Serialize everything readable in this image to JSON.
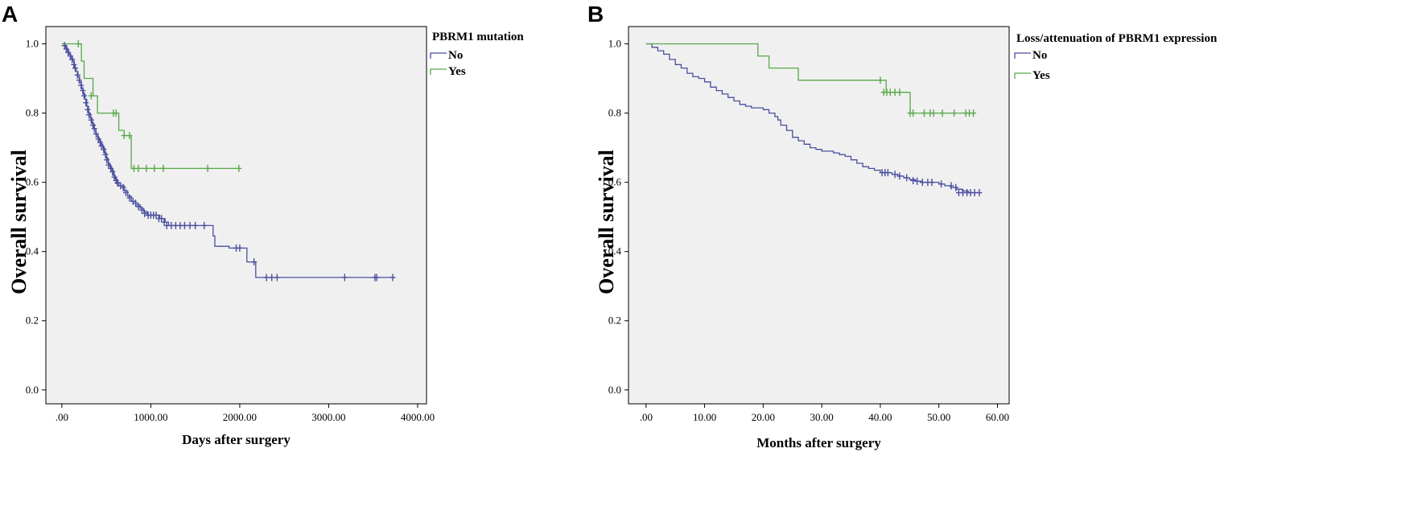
{
  "colors": {
    "no": "#4a4f9e",
    "yes": "#58a84a",
    "plot_bg": "#f0f0f0",
    "frame": "#000000"
  },
  "chart_data": [
    {
      "panel_label": "A",
      "type": "line",
      "title": "",
      "xlabel": "Days after surgery",
      "ylabel": "Overall survival",
      "xlim": [
        -180,
        4100
      ],
      "ylim": [
        -0.04,
        1.05
      ],
      "x_ticks": [
        0,
        1000,
        2000,
        3000,
        4000
      ],
      "x_tick_labels": [
        ".00",
        "1000.00",
        "2000.00",
        "3000.00",
        "4000.00"
      ],
      "y_ticks": [
        0,
        0.2,
        0.4,
        0.6,
        0.8,
        1.0
      ],
      "y_tick_labels": [
        "0.0",
        "0.2",
        "0.4",
        "0.6",
        "0.8",
        "1.0"
      ],
      "legend_title": "PBRM1 mutation",
      "legend_placement": "right",
      "series": [
        {
          "name": "No",
          "key": "no",
          "steps": [
            [
              0,
              1.0
            ],
            [
              40,
              0.99
            ],
            [
              60,
              0.98
            ],
            [
              80,
              0.97
            ],
            [
              100,
              0.96
            ],
            [
              120,
              0.95
            ],
            [
              140,
              0.93
            ],
            [
              160,
              0.92
            ],
            [
              180,
              0.905
            ],
            [
              200,
              0.89
            ],
            [
              220,
              0.87
            ],
            [
              240,
              0.855
            ],
            [
              260,
              0.84
            ],
            [
              280,
              0.82
            ],
            [
              300,
              0.8
            ],
            [
              320,
              0.785
            ],
            [
              340,
              0.77
            ],
            [
              360,
              0.755
            ],
            [
              380,
              0.74
            ],
            [
              400,
              0.73
            ],
            [
              420,
              0.72
            ],
            [
              440,
              0.71
            ],
            [
              460,
              0.7
            ],
            [
              480,
              0.685
            ],
            [
              500,
              0.67
            ],
            [
              520,
              0.655
            ],
            [
              540,
              0.645
            ],
            [
              560,
              0.635
            ],
            [
              580,
              0.62
            ],
            [
              600,
              0.61
            ],
            [
              620,
              0.6
            ],
            [
              640,
              0.59
            ],
            [
              700,
              0.575
            ],
            [
              740,
              0.56
            ],
            [
              780,
              0.545
            ],
            [
              830,
              0.535
            ],
            [
              880,
              0.525
            ],
            [
              920,
              0.515
            ],
            [
              960,
              0.505
            ],
            [
              1100,
              0.495
            ],
            [
              1160,
              0.485
            ],
            [
              1200,
              0.475
            ],
            [
              1700,
              0.445
            ],
            [
              1720,
              0.415
            ],
            [
              1880,
              0.41
            ],
            [
              2080,
              0.37
            ],
            [
              2180,
              0.325
            ],
            [
              3740,
              0.325
            ]
          ],
          "censored": [
            [
              30,
              0.995
            ],
            [
              50,
              0.985
            ],
            [
              70,
              0.975
            ],
            [
              95,
              0.965
            ],
            [
              115,
              0.955
            ],
            [
              135,
              0.94
            ],
            [
              150,
              0.93
            ],
            [
              175,
              0.91
            ],
            [
              195,
              0.895
            ],
            [
              215,
              0.88
            ],
            [
              235,
              0.865
            ],
            [
              250,
              0.85
            ],
            [
              270,
              0.83
            ],
            [
              290,
              0.81
            ],
            [
              305,
              0.795
            ],
            [
              330,
              0.78
            ],
            [
              350,
              0.765
            ],
            [
              365,
              0.755
            ],
            [
              385,
              0.74
            ],
            [
              410,
              0.725
            ],
            [
              430,
              0.715
            ],
            [
              445,
              0.705
            ],
            [
              470,
              0.695
            ],
            [
              490,
              0.68
            ],
            [
              505,
              0.665
            ],
            [
              525,
              0.65
            ],
            [
              550,
              0.64
            ],
            [
              570,
              0.63
            ],
            [
              590,
              0.615
            ],
            [
              610,
              0.605
            ],
            [
              625,
              0.598
            ],
            [
              660,
              0.59
            ],
            [
              690,
              0.585
            ],
            [
              720,
              0.57
            ],
            [
              760,
              0.555
            ],
            [
              800,
              0.545
            ],
            [
              830,
              0.54
            ],
            [
              860,
              0.53
            ],
            [
              900,
              0.52
            ],
            [
              930,
              0.51
            ],
            [
              970,
              0.505
            ],
            [
              1000,
              0.505
            ],
            [
              1030,
              0.505
            ],
            [
              1060,
              0.505
            ],
            [
              1090,
              0.495
            ],
            [
              1120,
              0.495
            ],
            [
              1150,
              0.485
            ],
            [
              1180,
              0.475
            ],
            [
              1230,
              0.475
            ],
            [
              1280,
              0.475
            ],
            [
              1330,
              0.475
            ],
            [
              1380,
              0.475
            ],
            [
              1440,
              0.475
            ],
            [
              1500,
              0.475
            ],
            [
              1600,
              0.475
            ],
            [
              1960,
              0.41
            ],
            [
              2000,
              0.41
            ],
            [
              2160,
              0.37
            ],
            [
              2300,
              0.325
            ],
            [
              2360,
              0.325
            ],
            [
              2420,
              0.325
            ],
            [
              3180,
              0.325
            ],
            [
              3520,
              0.325
            ],
            [
              3540,
              0.325
            ],
            [
              3720,
              0.325
            ]
          ]
        },
        {
          "name": "Yes",
          "key": "yes",
          "steps": [
            [
              0,
              1.0
            ],
            [
              200,
              1.0
            ],
            [
              220,
              0.95
            ],
            [
              250,
              0.9
            ],
            [
              350,
              0.85
            ],
            [
              400,
              0.8
            ],
            [
              620,
              0.8
            ],
            [
              640,
              0.75
            ],
            [
              700,
              0.735
            ],
            [
              760,
              0.735
            ],
            [
              780,
              0.64
            ],
            [
              2000,
              0.64
            ]
          ],
          "censored": [
            [
              185,
              1.0
            ],
            [
              330,
              0.85
            ],
            [
              580,
              0.8
            ],
            [
              610,
              0.8
            ],
            [
              700,
              0.735
            ],
            [
              760,
              0.735
            ],
            [
              810,
              0.64
            ],
            [
              860,
              0.64
            ],
            [
              950,
              0.64
            ],
            [
              1040,
              0.64
            ],
            [
              1140,
              0.64
            ],
            [
              1640,
              0.64
            ],
            [
              1990,
              0.64
            ]
          ]
        }
      ]
    },
    {
      "panel_label": "B",
      "type": "line",
      "title": "",
      "xlabel": "Months after surgery",
      "ylabel": "Overall survival",
      "xlim": [
        -3,
        62
      ],
      "ylim": [
        -0.04,
        1.05
      ],
      "x_ticks": [
        0,
        10,
        20,
        30,
        40,
        50,
        60
      ],
      "x_tick_labels": [
        ".00",
        "10.00",
        "20.00",
        "30.00",
        "40.00",
        "50.00",
        "60.00"
      ],
      "y_ticks": [
        0,
        0.2,
        0.4,
        0.6,
        0.8,
        1.0
      ],
      "y_tick_labels": [
        "0.0",
        "0.2",
        "0.4",
        "0.6",
        "0.8",
        "1.0"
      ],
      "legend_title": "Loss/attenuation of PBRM1 expression",
      "legend_placement": "right",
      "series": [
        {
          "name": "No",
          "key": "no",
          "steps": [
            [
              0,
              1.0
            ],
            [
              1,
              0.99
            ],
            [
              2,
              0.98
            ],
            [
              3,
              0.97
            ],
            [
              4,
              0.955
            ],
            [
              5,
              0.94
            ],
            [
              6,
              0.93
            ],
            [
              7,
              0.915
            ],
            [
              8,
              0.905
            ],
            [
              9,
              0.9
            ],
            [
              10,
              0.89
            ],
            [
              11,
              0.875
            ],
            [
              12,
              0.865
            ],
            [
              13,
              0.855
            ],
            [
              14,
              0.845
            ],
            [
              15,
              0.835
            ],
            [
              16,
              0.825
            ],
            [
              17,
              0.82
            ],
            [
              18,
              0.815
            ],
            [
              20,
              0.81
            ],
            [
              21,
              0.8
            ],
            [
              22,
              0.79
            ],
            [
              22.5,
              0.78
            ],
            [
              23,
              0.765
            ],
            [
              24,
              0.75
            ],
            [
              25,
              0.73
            ],
            [
              26,
              0.72
            ],
            [
              27,
              0.71
            ],
            [
              28,
              0.7
            ],
            [
              29,
              0.695
            ],
            [
              30,
              0.69
            ],
            [
              32,
              0.685
            ],
            [
              33,
              0.68
            ],
            [
              34,
              0.675
            ],
            [
              35,
              0.665
            ],
            [
              36,
              0.655
            ],
            [
              37,
              0.645
            ],
            [
              38,
              0.64
            ],
            [
              39,
              0.635
            ],
            [
              40,
              0.628
            ],
            [
              42,
              0.623
            ],
            [
              43,
              0.618
            ],
            [
              44,
              0.613
            ],
            [
              45,
              0.608
            ],
            [
              46,
              0.603
            ],
            [
              47,
              0.6
            ],
            [
              50,
              0.595
            ],
            [
              51,
              0.59
            ],
            [
              52,
              0.585
            ],
            [
              53,
              0.58
            ],
            [
              54,
              0.575
            ],
            [
              55,
              0.57
            ],
            [
              57,
              0.57
            ]
          ],
          "censored": [
            [
              40.3,
              0.628
            ],
            [
              40.8,
              0.628
            ],
            [
              41.3,
              0.628
            ],
            [
              42.5,
              0.623
            ],
            [
              43.3,
              0.618
            ],
            [
              44.5,
              0.613
            ],
            [
              45.6,
              0.605
            ],
            [
              46.3,
              0.603
            ],
            [
              47.2,
              0.6
            ],
            [
              48.1,
              0.6
            ],
            [
              48.8,
              0.6
            ],
            [
              50.4,
              0.595
            ],
            [
              52.1,
              0.59
            ],
            [
              52.9,
              0.585
            ],
            [
              53.4,
              0.57
            ],
            [
              54.1,
              0.57
            ],
            [
              54.8,
              0.57
            ],
            [
              55.4,
              0.57
            ],
            [
              56.1,
              0.57
            ],
            [
              56.9,
              0.57
            ]
          ]
        },
        {
          "name": "Yes",
          "key": "yes",
          "steps": [
            [
              0,
              1.0
            ],
            [
              19,
              1.0
            ],
            [
              19.1,
              0.965
            ],
            [
              21,
              0.93
            ],
            [
              26,
              0.895
            ],
            [
              40.5,
              0.895
            ],
            [
              41,
              0.86
            ],
            [
              45,
              0.86
            ],
            [
              45.1,
              0.8
            ],
            [
              56,
              0.8
            ]
          ],
          "censored": [
            [
              40,
              0.895
            ],
            [
              40.6,
              0.86
            ],
            [
              41.1,
              0.86
            ],
            [
              41.7,
              0.86
            ],
            [
              42.5,
              0.86
            ],
            [
              43.3,
              0.86
            ],
            [
              45.1,
              0.8
            ],
            [
              45.6,
              0.8
            ],
            [
              47.5,
              0.8
            ],
            [
              48.5,
              0.8
            ],
            [
              49.1,
              0.8
            ],
            [
              50.6,
              0.8
            ],
            [
              52.6,
              0.8
            ],
            [
              54.6,
              0.8
            ],
            [
              55.2,
              0.8
            ],
            [
              55.9,
              0.8
            ]
          ]
        }
      ]
    }
  ]
}
